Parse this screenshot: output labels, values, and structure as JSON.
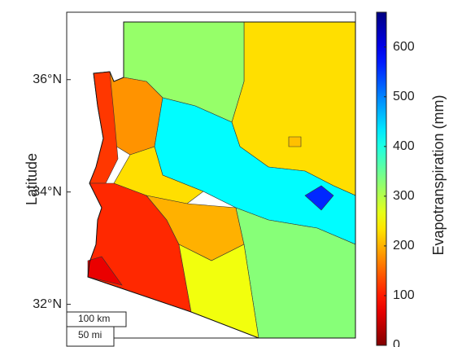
{
  "chart_data": {
    "type": "choropleth",
    "ylabel": "Latitude",
    "ylim": [
      31.4,
      37.2
    ],
    "yticks": [
      {
        "value": 32,
        "label": "32°N"
      },
      {
        "value": 34,
        "label": "34°N"
      },
      {
        "value": 36,
        "label": "36°N"
      }
    ],
    "values": [
      230,
      320,
      180,
      120,
      420,
      560,
      230,
      110,
      70,
      200,
      330,
      260,
      210
    ],
    "colormap": "jet-reversed",
    "colorbar": {
      "label": "Evapotranspiration (mm)",
      "lim": [
        0,
        670
      ],
      "ticks": [
        0,
        100,
        200,
        300,
        400,
        500,
        600
      ]
    },
    "scale_bars": [
      "100 km",
      "50 mi"
    ]
  }
}
